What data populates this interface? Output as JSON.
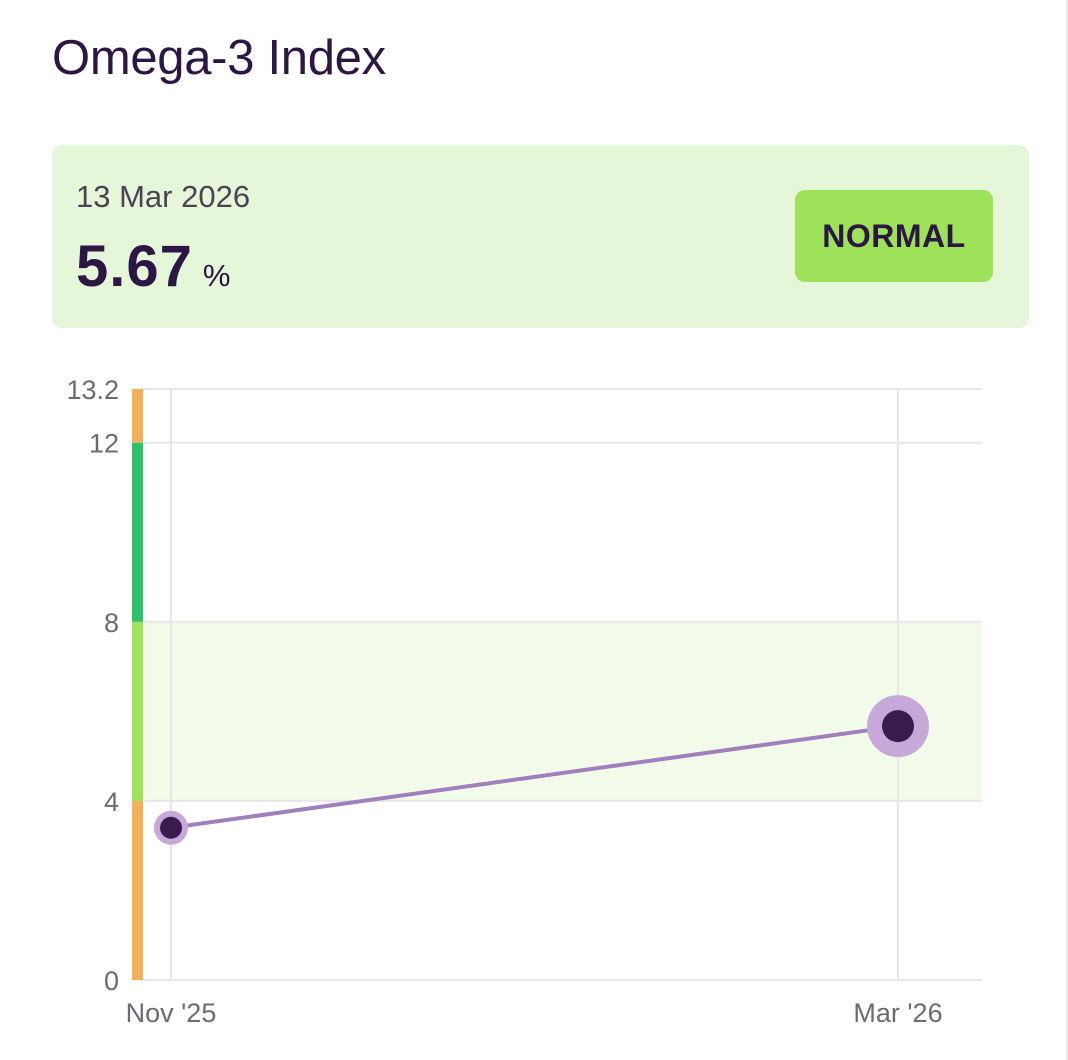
{
  "title": "Omega-3 Index",
  "latest": {
    "date": "13 Mar 2026",
    "value": "5.67",
    "unit": "%",
    "status": "NORMAL"
  },
  "colors": {
    "title": "#2b1644",
    "card_bg": "#e6f7d9",
    "badge_bg": "#9ee25a",
    "point": "#3a1a4f",
    "point_halo": "#c6a9d8",
    "line": "#a07fbd",
    "band_normal": "#f2fbe9",
    "range_low": "#f2b155",
    "range_normal": "#9ee25a",
    "range_optimal": "#2dc36c",
    "range_high": "#f2b155"
  },
  "chart_data": {
    "type": "line",
    "x": [
      "Nov '25",
      "Mar '26"
    ],
    "series": [
      {
        "values": [
          3.4,
          5.67
        ]
      }
    ],
    "ylim": [
      0,
      13.2
    ],
    "yticks": [
      0,
      4,
      8,
      12,
      13.2
    ],
    "normal_band": [
      4,
      8
    ],
    "range_bar": [
      {
        "from": 0,
        "to": 4,
        "level": "low"
      },
      {
        "from": 4,
        "to": 8,
        "level": "normal"
      },
      {
        "from": 8,
        "to": 12,
        "level": "optimal"
      },
      {
        "from": 12,
        "to": 13.2,
        "level": "high"
      }
    ],
    "grid": true,
    "legend": "none"
  }
}
